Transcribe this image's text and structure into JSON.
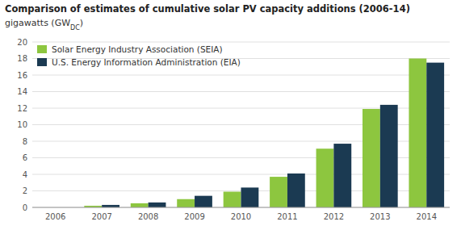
{
  "chart_data": {
    "type": "bar",
    "title": "Comparison of estimates of cumulative solar PV capacity additions (2006-14)",
    "subtitle": [
      "gigawatts (GW",
      "DC",
      ")"
    ],
    "categories": [
      "2006",
      "2007",
      "2008",
      "2009",
      "2010",
      "2011",
      "2012",
      "2013",
      "2014"
    ],
    "series": [
      {
        "name": "Solar Energy Industry Association (SEIA)",
        "color": "#8dc63f",
        "values": [
          0.0,
          0.2,
          0.5,
          1.0,
          1.9,
          3.7,
          7.1,
          11.9,
          18.0
        ]
      },
      {
        "name": "U.S. Energy Information Administration (EIA)",
        "color": "#1b3a52",
        "values": [
          0.0,
          0.3,
          0.6,
          1.4,
          2.4,
          4.1,
          7.7,
          12.4,
          17.5
        ]
      }
    ],
    "ylim": [
      0,
      20
    ],
    "yticks": [
      0,
      2,
      4,
      6,
      8,
      10,
      12,
      14,
      16,
      18,
      20
    ],
    "grid": true,
    "legend": "upper left"
  }
}
